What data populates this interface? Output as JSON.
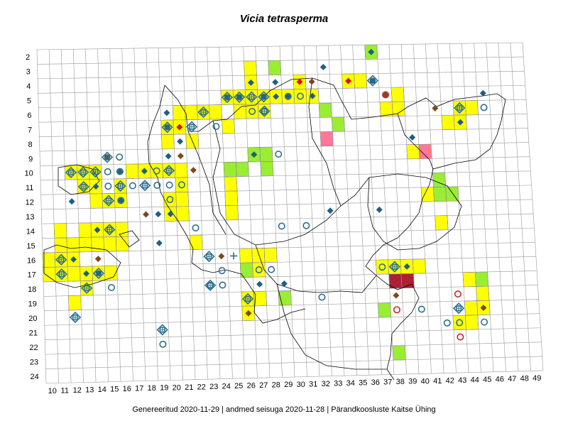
{
  "title": "Vicia tetrasperma",
  "footer": "Genereeritud 2020-11-29  |  andmed seisuga 2020-11-28  |  Pärandkoosluste Kaitse Ühing",
  "grid": {
    "columns": [
      "10",
      "11",
      "12",
      "13",
      "14",
      "15",
      "16",
      "17",
      "18",
      "19",
      "20",
      "21",
      "22",
      "23",
      "24",
      "25",
      "26",
      "27",
      "28",
      "29",
      "30",
      "31",
      "32",
      "33",
      "34",
      "35",
      "36",
      "37",
      "38",
      "39",
      "40",
      "41",
      "42",
      "43",
      "44",
      "45",
      "46",
      "47",
      "48",
      "49"
    ],
    "rows": [
      "2",
      "3",
      "4",
      "5",
      "6",
      "7",
      "8",
      "9",
      "10",
      "11",
      "12",
      "13",
      "14",
      "15",
      "16",
      "17",
      "18",
      "19",
      "20",
      "21",
      "22",
      "23",
      "24"
    ]
  },
  "colors": {
    "yellow": "#ffff00",
    "green": "#99ee33",
    "pink": "#ff7799",
    "darkred": "#aa2233",
    "diamond_blue": "#1f5f7f",
    "diamond_brown": "#7a4a1f",
    "diamond_red": "#dd1111",
    "circle_blue": "#2a6f8f",
    "circle_red": "#cc2222"
  },
  "layers": {
    "yellow_cells": [
      [
        27,
        3
      ],
      [
        31,
        4
      ],
      [
        27,
        4
      ],
      [
        25,
        5
      ],
      [
        26,
        5
      ],
      [
        27,
        5
      ],
      [
        28,
        5
      ],
      [
        29,
        5
      ],
      [
        30,
        5
      ],
      [
        31,
        5
      ],
      [
        32,
        5
      ],
      [
        26,
        6
      ],
      [
        27,
        6
      ],
      [
        28,
        6
      ],
      [
        21,
        6
      ],
      [
        22,
        6
      ],
      [
        23,
        6
      ],
      [
        24,
        6
      ],
      [
        25,
        7
      ],
      [
        20,
        7
      ],
      [
        21,
        7
      ],
      [
        20,
        8
      ],
      [
        22,
        8
      ],
      [
        35,
        4
      ],
      [
        36,
        4
      ],
      [
        39,
        5
      ],
      [
        38,
        6
      ],
      [
        39,
        6
      ],
      [
        44,
        6
      ],
      [
        45,
        6
      ],
      [
        43,
        7
      ],
      [
        44,
        7
      ],
      [
        12,
        10
      ],
      [
        13,
        10
      ],
      [
        14,
        10
      ],
      [
        17,
        10
      ],
      [
        18,
        10
      ],
      [
        19,
        10
      ],
      [
        20,
        10
      ],
      [
        21,
        10
      ],
      [
        13,
        11
      ],
      [
        14,
        11
      ],
      [
        16,
        11
      ],
      [
        21,
        11
      ],
      [
        14,
        12
      ],
      [
        15,
        12
      ],
      [
        16,
        12
      ],
      [
        20,
        12
      ],
      [
        21,
        12
      ],
      [
        20,
        13
      ],
      [
        21,
        13
      ],
      [
        25,
        10
      ],
      [
        25,
        11
      ],
      [
        25,
        12
      ],
      [
        25,
        13
      ],
      [
        11,
        14
      ],
      [
        13,
        14
      ],
      [
        14,
        14
      ],
      [
        15,
        14
      ],
      [
        16,
        14
      ],
      [
        11,
        15
      ],
      [
        12,
        15
      ],
      [
        13,
        15
      ],
      [
        14,
        15
      ],
      [
        15,
        15
      ],
      [
        16,
        15
      ],
      [
        22,
        15
      ],
      [
        10,
        16
      ],
      [
        11,
        16
      ],
      [
        12,
        16
      ],
      [
        26,
        16
      ],
      [
        27,
        16
      ],
      [
        28,
        16
      ],
      [
        10,
        17
      ],
      [
        11,
        17
      ],
      [
        12,
        17
      ],
      [
        13,
        17
      ],
      [
        14,
        17
      ],
      [
        15,
        17
      ],
      [
        26,
        17
      ],
      [
        27,
        17
      ],
      [
        13,
        18
      ],
      [
        12,
        19
      ],
      [
        26,
        19
      ],
      [
        27,
        19
      ],
      [
        26,
        20
      ],
      [
        37,
        17
      ],
      [
        38,
        17
      ],
      [
        39,
        17
      ],
      [
        40,
        17
      ],
      [
        44,
        18
      ],
      [
        45,
        19
      ],
      [
        44,
        20
      ],
      [
        45,
        20
      ],
      [
        43,
        21
      ],
      [
        44,
        21
      ],
      [
        41,
        12
      ],
      [
        42,
        14
      ],
      [
        40,
        9
      ]
    ],
    "green_cells": [
      [
        37,
        2
      ],
      [
        29,
        3
      ],
      [
        33,
        6
      ],
      [
        34,
        7
      ],
      [
        25,
        10
      ],
      [
        26,
        10
      ],
      [
        27,
        9
      ],
      [
        28,
        9
      ],
      [
        28,
        10
      ],
      [
        42,
        11
      ],
      [
        42,
        12
      ],
      [
        43,
        12
      ],
      [
        29,
        19
      ],
      [
        37,
        20
      ],
      [
        38,
        23
      ],
      [
        45,
        18
      ],
      [
        26,
        17
      ]
    ],
    "pink_cells": [
      [
        33,
        8
      ],
      [
        41,
        9
      ]
    ],
    "darkred_cells": [
      [
        38,
        18
      ],
      [
        39,
        18
      ]
    ],
    "blue_diamonds": [
      [
        37,
        2
      ],
      [
        33,
        3
      ],
      [
        27,
        4
      ],
      [
        29,
        4
      ],
      [
        37,
        4
      ],
      [
        25,
        5
      ],
      [
        26,
        5
      ],
      [
        28,
        5
      ],
      [
        29,
        5
      ],
      [
        30,
        5
      ],
      [
        32,
        5
      ],
      [
        46,
        5
      ],
      [
        20,
        6
      ],
      [
        20,
        7
      ],
      [
        44,
        7
      ],
      [
        21,
        8
      ],
      [
        40,
        8
      ],
      [
        20,
        9
      ],
      [
        27,
        9
      ],
      [
        16,
        10
      ],
      [
        18,
        10
      ],
      [
        14,
        11
      ],
      [
        12,
        12
      ],
      [
        16,
        12
      ],
      [
        19,
        13
      ],
      [
        20,
        13
      ],
      [
        33,
        13
      ],
      [
        37,
        13
      ],
      [
        14,
        14
      ],
      [
        19,
        15
      ],
      [
        12,
        16
      ],
      [
        13,
        17
      ],
      [
        14,
        17
      ],
      [
        39,
        17
      ],
      [
        27,
        18
      ],
      [
        29,
        18
      ]
    ],
    "brown_diamonds": [
      [
        32,
        4
      ],
      [
        38,
        5
      ],
      [
        42,
        6
      ],
      [
        15,
        9
      ],
      [
        21,
        9
      ],
      [
        22,
        10
      ],
      [
        18,
        13
      ],
      [
        14,
        16
      ],
      [
        24,
        16
      ],
      [
        38,
        19
      ],
      [
        26,
        20
      ],
      [
        45,
        20
      ]
    ],
    "red_diamonds": [
      [
        21,
        7
      ],
      [
        31,
        4
      ],
      [
        35,
        4
      ]
    ],
    "blue_circles": [
      [
        30,
        5
      ],
      [
        31,
        5
      ],
      [
        27,
        6
      ],
      [
        28,
        6
      ],
      [
        24,
        7
      ],
      [
        16,
        9
      ],
      [
        29,
        9
      ],
      [
        15,
        10
      ],
      [
        16,
        10
      ],
      [
        19,
        10
      ],
      [
        15,
        11
      ],
      [
        17,
        11
      ],
      [
        19,
        11
      ],
      [
        20,
        11
      ],
      [
        21,
        11
      ],
      [
        16,
        12
      ],
      [
        20,
        12
      ],
      [
        22,
        14
      ],
      [
        29,
        14
      ],
      [
        31,
        14
      ],
      [
        24,
        17
      ],
      [
        27,
        17
      ],
      [
        28,
        17
      ],
      [
        15,
        18
      ],
      [
        23,
        18
      ],
      [
        24,
        18
      ],
      [
        32,
        19
      ],
      [
        37,
        17
      ],
      [
        40,
        20
      ],
      [
        42,
        21
      ],
      [
        43,
        21
      ],
      [
        45,
        21
      ],
      [
        19,
        22
      ],
      [
        46,
        6
      ]
    ],
    "red_circles": [
      [
        38,
        5
      ],
      [
        43,
        19
      ],
      [
        38,
        20
      ],
      [
        43,
        22
      ]
    ],
    "target_symbols": [
      [
        37,
        4
      ],
      [
        25,
        5
      ],
      [
        26,
        5
      ],
      [
        27,
        5
      ],
      [
        28,
        5
      ],
      [
        23,
        6
      ],
      [
        28,
        6
      ],
      [
        20,
        7
      ],
      [
        22,
        7
      ],
      [
        15,
        9
      ],
      [
        12,
        10
      ],
      [
        13,
        10
      ],
      [
        14,
        10
      ],
      [
        20,
        10
      ],
      [
        13,
        11
      ],
      [
        18,
        11
      ],
      [
        16,
        11
      ],
      [
        15,
        12
      ],
      [
        15,
        14
      ],
      [
        11,
        16
      ],
      [
        11,
        17
      ],
      [
        14,
        17
      ],
      [
        13,
        18
      ],
      [
        23,
        16
      ],
      [
        23,
        18
      ],
      [
        26,
        19
      ],
      [
        12,
        20
      ],
      [
        19,
        21
      ],
      [
        44,
        6
      ],
      [
        43,
        20
      ],
      [
        38,
        17
      ]
    ],
    "cross_symbols": [
      [
        25,
        16
      ]
    ]
  }
}
